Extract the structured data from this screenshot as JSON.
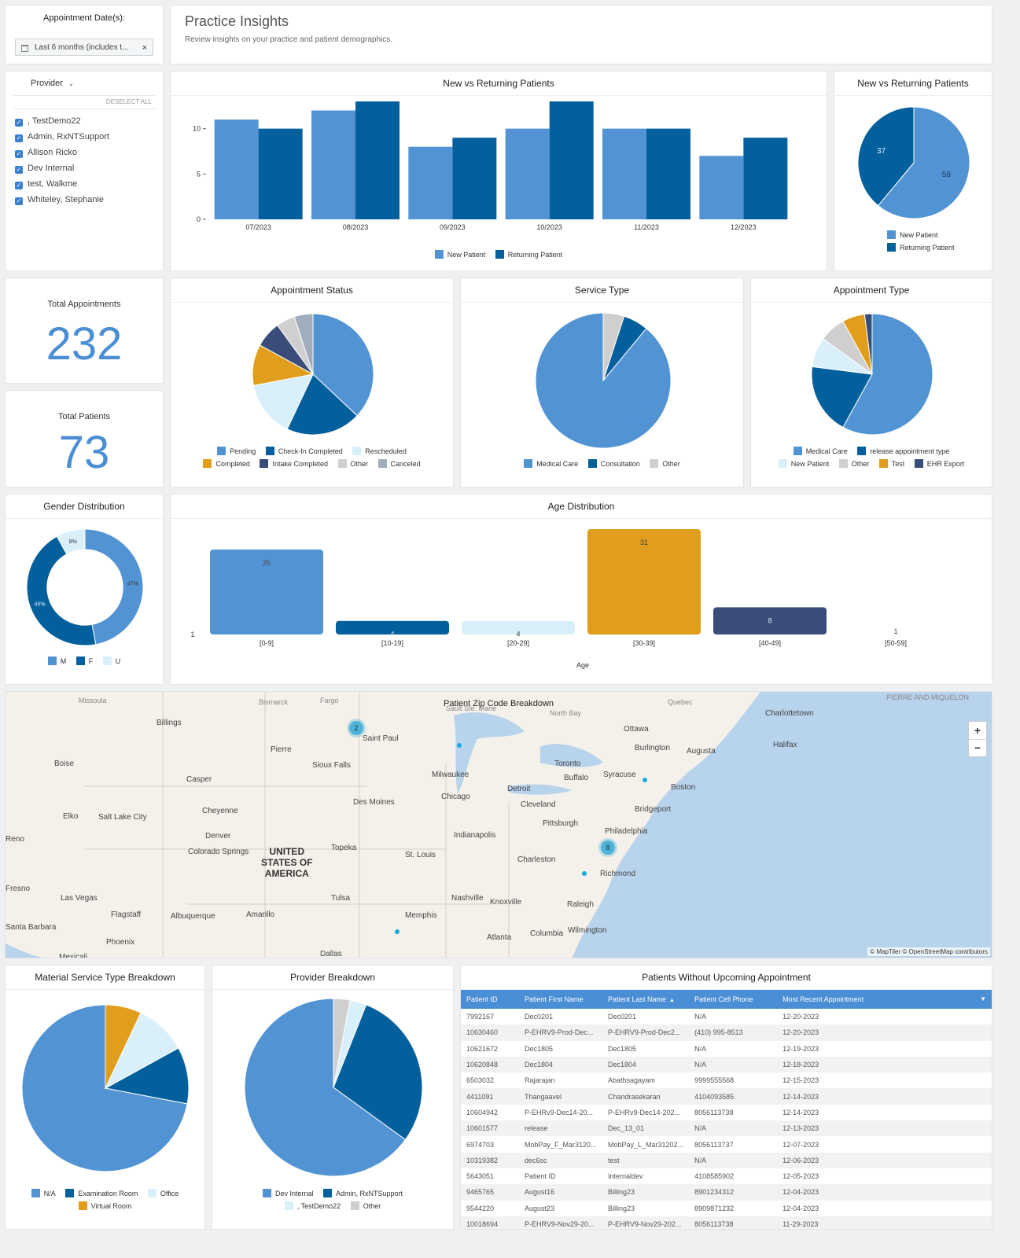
{
  "filter": {
    "label": "Appointment Date(s):",
    "date_value": "Last 6 months (includes t...",
    "clear": "×"
  },
  "header": {
    "title": "Practice Insights",
    "subtitle": "Review insights on your practice and patient demographics."
  },
  "provider_filter": {
    "label": "Provider",
    "deselect": "DESELECT ALL",
    "items": [
      ", TestDemo22",
      "Admin, RxNTSupport",
      "Allison Ricko",
      "Dev Internal",
      "test, Walkme",
      "Whiteley, Stephanie"
    ]
  },
  "colors": {
    "blue": "#5294d3",
    "darkblue": "#04609c",
    "lightblue": "#d9f0fb",
    "orange": "#e09e1c",
    "navy": "#394d78",
    "gray": "#cfcfcf",
    "slate": "#9fadbd"
  },
  "kpis": {
    "total_appointments_label": "Total Appointments",
    "total_appointments": "232",
    "total_patients_label": "Total Patients",
    "total_patients": "73"
  },
  "charts": {
    "new_vs_returning_bar": {
      "title": "New vs Returning Patients",
      "type": "bar",
      "categories": [
        "07/2023",
        "08/2023",
        "09/2023",
        "10/2023",
        "11/2023",
        "12/2023"
      ],
      "series": [
        {
          "name": "New Patient",
          "values": [
            11,
            12,
            8,
            10,
            10,
            7
          ],
          "color": "#5294d3"
        },
        {
          "name": "Returning Patient",
          "values": [
            10,
            13,
            9,
            13,
            10,
            9
          ],
          "color": "#04609c"
        }
      ],
      "y_ticks": [
        "0",
        "5",
        "10"
      ],
      "ylim": [
        0,
        13
      ]
    },
    "new_vs_returning_pie": {
      "title": "New vs Returning Patients",
      "type": "pie",
      "slices": [
        {
          "name": "New Patient",
          "value": 58,
          "label": "58",
          "color": "#5294d3"
        },
        {
          "name": "Returning Patient",
          "value": 37,
          "label": "37",
          "color": "#04609c"
        }
      ]
    },
    "appointment_status": {
      "title": "Appointment Status",
      "type": "pie",
      "slices": [
        {
          "name": "Pending",
          "value": 37,
          "color": "#5294d3"
        },
        {
          "name": "Check-In Completed",
          "value": 20,
          "color": "#04609c"
        },
        {
          "name": "Rescheduled",
          "value": 15,
          "color": "#d9f0fb"
        },
        {
          "name": "Completed",
          "value": 11,
          "color": "#e09e1c"
        },
        {
          "name": "Intake Completed",
          "value": 7,
          "color": "#394d78"
        },
        {
          "name": "Other",
          "value": 5,
          "color": "#cfcfcf"
        },
        {
          "name": "Canceled",
          "value": 5,
          "color": "#9fadbd"
        }
      ]
    },
    "service_type": {
      "title": "Service Type",
      "type": "pie",
      "slices": [
        {
          "name": "Medical Care",
          "value": 89,
          "color": "#5294d3"
        },
        {
          "name": "Consultation",
          "value": 6,
          "color": "#04609c"
        },
        {
          "name": "Other",
          "value": 5,
          "color": "#cfcfcf"
        }
      ]
    },
    "appointment_type": {
      "title": "Appointment Type",
      "type": "pie",
      "slices": [
        {
          "name": "Medical Care",
          "value": 58,
          "color": "#5294d3"
        },
        {
          "name": "release appointment type",
          "value": 19,
          "color": "#04609c"
        },
        {
          "name": "New Patient",
          "value": 8,
          "color": "#d9f0fb"
        },
        {
          "name": "Other",
          "value": 7,
          "color": "#cfcfcf"
        },
        {
          "name": "Test",
          "value": 6,
          "color": "#e09e1c"
        },
        {
          "name": "EHR Export",
          "value": 2,
          "color": "#394d78"
        }
      ]
    },
    "gender_distribution": {
      "title": "Gender Distribution",
      "type": "donut",
      "slices": [
        {
          "name": "M",
          "value": 47,
          "label": "47%",
          "color": "#5294d3"
        },
        {
          "name": "F",
          "value": 45,
          "label": "45%",
          "color": "#04609c"
        },
        {
          "name": "U",
          "value": 8,
          "label": "8%",
          "color": "#d9f0fb"
        }
      ]
    },
    "age_distribution": {
      "title": "Age Distribution",
      "type": "bar",
      "xlabel": "Age",
      "y_tick": "1",
      "categories": [
        "[0-9]",
        "[10-19]",
        "[20-29]",
        "[30-39]",
        "[40-49]",
        "[50-59]"
      ],
      "values": [
        25,
        4,
        4,
        31,
        8,
        1
      ],
      "value_labels": [
        "25",
        "4",
        "4",
        "31",
        "8",
        "1"
      ],
      "colors": [
        "#5294d3",
        "#04609c",
        "#d9f0fb",
        "#e09e1c",
        "#394d78",
        "#cfcfcf"
      ]
    },
    "material_service_type": {
      "title": "Material Service Type Breakdown",
      "type": "pie",
      "slices": [
        {
          "name": "N/A",
          "value": 72,
          "color": "#5294d3"
        },
        {
          "name": "Examination Room",
          "value": 11,
          "color": "#04609c"
        },
        {
          "name": "Office",
          "value": 10,
          "color": "#d9f0fb"
        },
        {
          "name": "Virtual Room",
          "value": 7,
          "color": "#e09e1c"
        }
      ]
    },
    "provider_breakdown": {
      "title": "Provider Breakdown",
      "type": "pie",
      "slices": [
        {
          "name": "Dev Internal",
          "value": 65,
          "color": "#5294d3"
        },
        {
          "name": "Admin, RxNTSupport",
          "value": 29,
          "color": "#04609c"
        },
        {
          "name": ", TestDemo22",
          "value": 3,
          "color": "#d9f0fb"
        },
        {
          "name": "Other",
          "value": 3,
          "color": "#cfcfcf"
        }
      ]
    }
  },
  "map": {
    "title": "Patient Zip Code Breakdown",
    "attribution": "© MapTiler © OpenStreetMap contributors",
    "zoom_in": "+",
    "zoom_out": "−",
    "clusters": [
      "2",
      "8"
    ],
    "country": [
      "UNITED",
      "STATES OF",
      "AMERICA"
    ],
    "cities": [
      "Missoula",
      "Bismarck",
      "Fargo",
      "Sault Ste. Marie",
      "North Bay",
      "Quebec",
      "Charlottetown",
      "Billings",
      "Saint Paul",
      "Ottawa",
      "Pierre",
      "Burlington",
      "Augusta",
      "Halifax",
      "Boise",
      "Sioux Falls",
      "Toronto",
      "Casper",
      "Milwaukee",
      "Buffalo",
      "Syracuse",
      "Detroit",
      "Boston",
      "Chicago",
      "Des Moines",
      "Cleveland",
      "Cheyenne",
      "Bridgeport",
      "Elko",
      "Salt Lake City",
      "Pittsburgh",
      "Denver",
      "Indianapolis",
      "Philadelphia",
      "Reno",
      "Colorado Springs",
      "Topeka",
      "St. Louis",
      "Charleston",
      "Richmond",
      "Fresno",
      "Las Vegas",
      "Tulsa",
      "Nashville",
      "Knoxville",
      "Raleigh",
      "Flagstaff",
      "Albuquerque",
      "Amarillo",
      "Memphis",
      "Santa Barbara",
      "Atlanta",
      "Columbia",
      "Wilmington",
      "Phoenix",
      "Dallas",
      "Mexicali",
      "PIERRE AND MIQUELON"
    ]
  },
  "patients_table": {
    "title": "Patients Without Upcoming Appointment",
    "columns": [
      "Patient ID",
      "Patient First Name",
      "Patient Last Name",
      "Patient Cell Phone",
      "Most Recent Appointment"
    ],
    "rows": [
      [
        "7992167",
        "Dec0201",
        "Dec0201",
        "N/A",
        "12-20-2023"
      ],
      [
        "10630460",
        "P-EHRV9-Prod-Dec...",
        "P-EHRV9-Prod-Dec2...",
        "(410) 995-8513",
        "12-20-2023"
      ],
      [
        "10621672",
        "Dec1805",
        "Dec1805",
        "N/A",
        "12-19-2023"
      ],
      [
        "10620848",
        "Dec1804",
        "Dec1804",
        "N/A",
        "12-18-2023"
      ],
      [
        "6503032",
        "Rajarajan",
        "Abathsagayam",
        "9999555568",
        "12-15-2023"
      ],
      [
        "4411091",
        "Thangaavel",
        "Chandrasekaran",
        "4104093585",
        "12-14-2023"
      ],
      [
        "10604942",
        "P-EHRv9-Dec14-20...",
        "P-EHRv9-Dec14-202...",
        "8056113738",
        "12-14-2023"
      ],
      [
        "10601577",
        "release",
        "Dec_13_01",
        "N/A",
        "12-13-2023"
      ],
      [
        "6974703",
        "MobPay_F_Mar3120...",
        "MobPay_L_Mar31202...",
        "8056113737",
        "12-07-2023"
      ],
      [
        "10319382",
        "dec6sc",
        "test",
        "N/A",
        "12-06-2023"
      ],
      [
        "5643051",
        "Patient ID",
        "Internaldev",
        "4108585902",
        "12-05-2023"
      ],
      [
        "9465765",
        "August16",
        "Billing23",
        "8901234312",
        "12-04-2023"
      ],
      [
        "9544220",
        "August23",
        "Billing23",
        "8909871232",
        "12-04-2023"
      ],
      [
        "10018694",
        "P-EHRV9-Nov29-20...",
        "P-EHRV9-Nov29-202...",
        "8056113738",
        "11-29-2023"
      ]
    ]
  }
}
